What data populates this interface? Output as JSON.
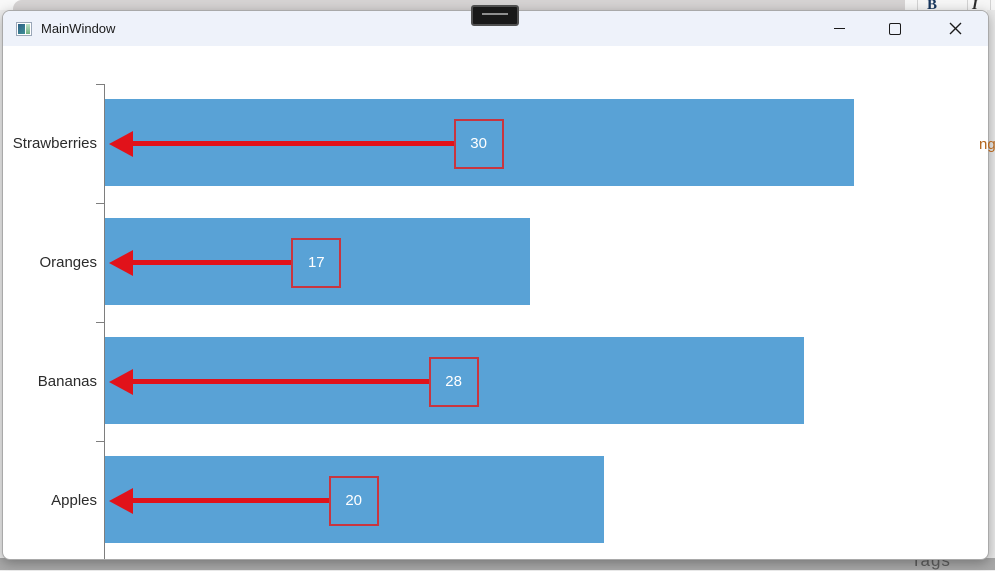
{
  "window": {
    "title": "MainWindow",
    "controls": {
      "minimize": "minimize",
      "maximize": "maximize",
      "close": "close"
    }
  },
  "desktop": {
    "top_toolbar_letters": [
      "B",
      "I"
    ],
    "right_edge_text": "ng",
    "bottom_text": "Tags"
  },
  "chart_data": {
    "type": "bar",
    "orientation": "horizontal",
    "title": "",
    "categories": [
      "Strawberries",
      "Oranges",
      "Bananas",
      "Apples"
    ],
    "values": [
      30,
      17,
      28,
      20
    ],
    "annotations": [
      {
        "label": "30",
        "at_value": 15
      },
      {
        "label": "17",
        "at_value": 8.5
      },
      {
        "label": "28",
        "at_value": 14
      },
      {
        "label": "20",
        "at_value": 10
      }
    ],
    "arrow_points_to_value": 0,
    "x_ticks": [
      0,
      5,
      10,
      15,
      20,
      25,
      30,
      35
    ],
    "xlim": [
      0,
      35
    ],
    "grid": false,
    "legend": false,
    "bar_color": "#59A2D6",
    "arrow_color": "#E1121A",
    "annotation_border_color": "#C9353F",
    "annotation_text_color": "#FFFFFF",
    "axis_color": "#7E7E7E",
    "tick_label_color": "#3C3C3C",
    "category_label_color": "#2B2B2B"
  }
}
